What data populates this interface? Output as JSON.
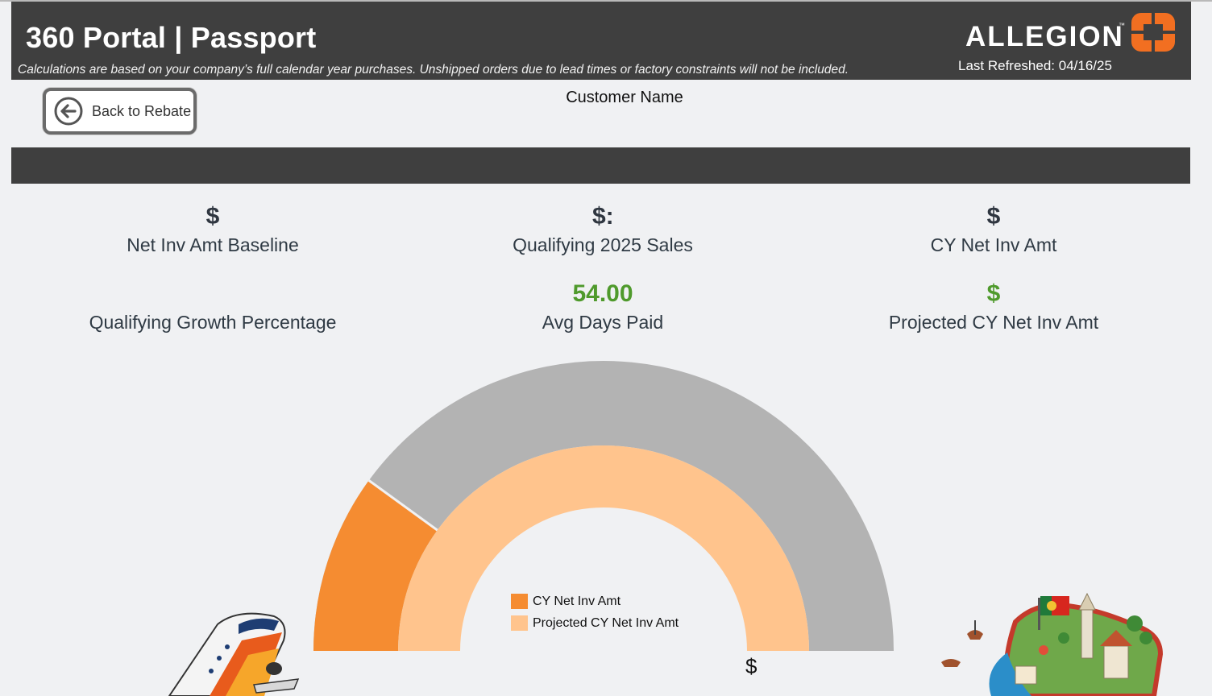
{
  "header": {
    "title": "360 Portal | Passport",
    "subtitle": "Calculations are based on your company’s full calendar year purchases. Unshipped orders due to lead times or factory constraints will not be included.",
    "brand": "ALLEGION",
    "brand_tm": "™",
    "last_refreshed": "Last Refreshed: 04/16/25"
  },
  "nav": {
    "back_label": "Back to Rebate"
  },
  "customer": {
    "label": "Customer Name"
  },
  "kpis": {
    "net_inv_baseline": {
      "value": "$",
      "label": "Net Inv Amt Baseline"
    },
    "qualifying_sales": {
      "value": "$:",
      "label": "Qualifying 2025 Sales"
    },
    "cy_net_inv": {
      "value": "$",
      "label": "CY Net Inv Amt"
    },
    "growth_pct": {
      "value": "",
      "label": "Qualifying Growth Percentage"
    },
    "avg_days_paid": {
      "value": "54.00",
      "label": "Avg Days Paid"
    },
    "projected_cy": {
      "value": "$",
      "label": "Projected CY Net Inv Amt"
    }
  },
  "gauge": {
    "value_label": "$:",
    "legend": [
      {
        "label": "CY Net Inv Amt",
        "color": "#f58c31"
      },
      {
        "label": "Projected CY Net Inv Amt",
        "color": "#ffc48d"
      }
    ],
    "outer_fill_fraction": 0.2,
    "inner_fill_fraction": 1.0,
    "track_color": "#b3b3b3"
  },
  "colors": {
    "header_bg": "#3f3f3f",
    "brand_orange": "#f26f21",
    "kpi_green": "#4f9a2c"
  },
  "icons": {
    "back": "arrow-left-circle-icon"
  }
}
